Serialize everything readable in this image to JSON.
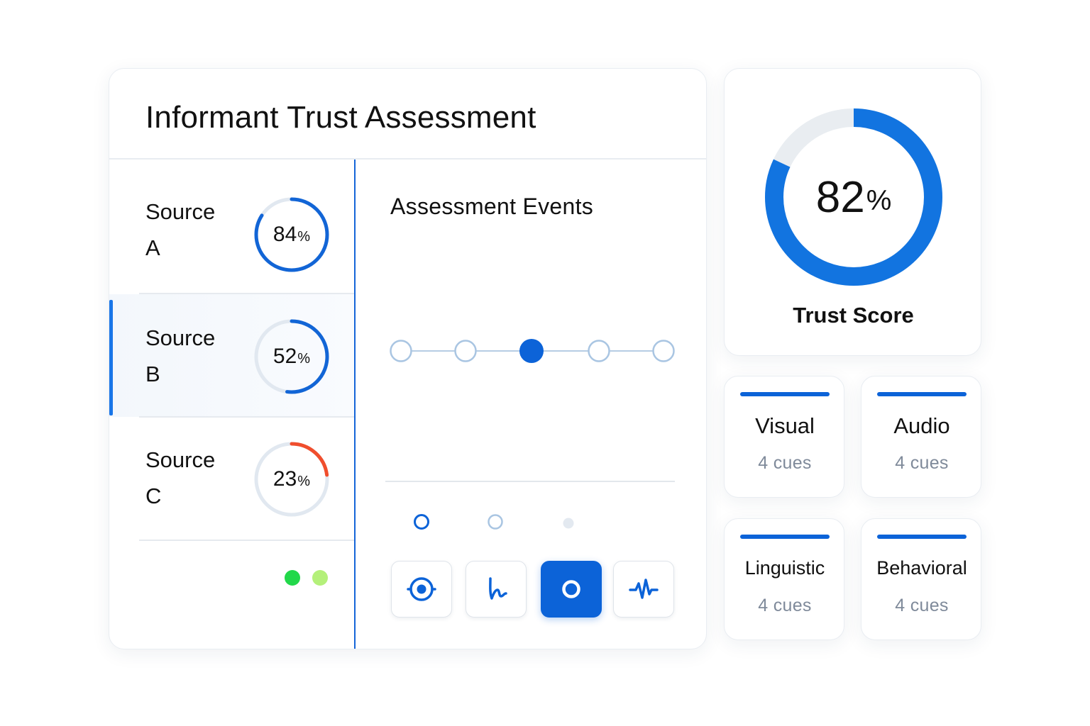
{
  "main": {
    "title": "Informant Trust Assessment",
    "sources": [
      {
        "line1": "Source",
        "line2": "A",
        "score": "84",
        "fraction": 0.84,
        "color": "#1265d6"
      },
      {
        "line1": "Source",
        "line2": "B",
        "score": "52",
        "fraction": 0.52,
        "color": "#1265d6",
        "selected": true
      },
      {
        "line1": "Source",
        "line2": "C",
        "score": "23",
        "fraction": 0.23,
        "color": "#f04e2d"
      }
    ],
    "percent_symbol": "%",
    "status_dots": [
      "#22d84a",
      "#b4f07a"
    ],
    "events": {
      "title": "Assessment Events",
      "timeline_count": 5,
      "timeline_active_index": 2,
      "tools": [
        {
          "icon": "target-icon",
          "active": false
        },
        {
          "icon": "signature-icon",
          "active": false
        },
        {
          "icon": "record-icon",
          "active": true
        },
        {
          "icon": "waveform-icon",
          "active": false
        }
      ]
    }
  },
  "trust": {
    "value": "82",
    "fraction": 0.82,
    "label": "Trust Score"
  },
  "cues": [
    {
      "name": "Visual",
      "count": "4 cues"
    },
    {
      "name": "Audio",
      "count": "4 cues"
    },
    {
      "name": "Linguistic",
      "count": "4 cues"
    },
    {
      "name": "Behavioral",
      "count": "4 cues"
    }
  ],
  "colors": {
    "accent": "#0c63d8",
    "ring_track": "#e1e8f0",
    "muted_text": "#7f8a9a"
  }
}
